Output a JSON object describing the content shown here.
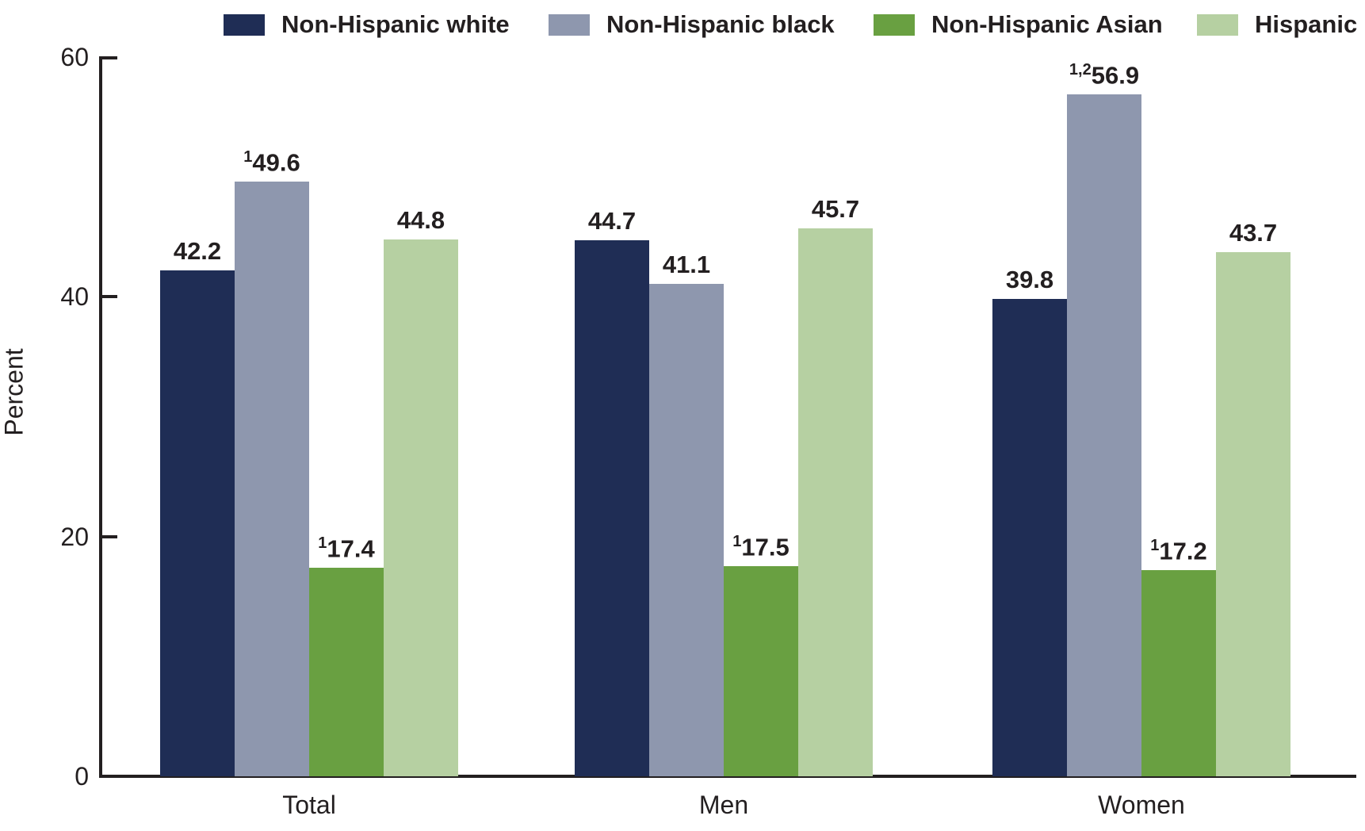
{
  "chart_data": {
    "type": "bar",
    "title": "",
    "ylabel": "Percent",
    "categories": [
      "Total",
      "Men",
      "Women"
    ],
    "series": [
      {
        "name": "Non-Hispanic white",
        "color": "#1f2d55",
        "values": [
          42.2,
          44.7,
          39.8
        ],
        "labels": [
          "42.2",
          "44.7",
          "39.8"
        ],
        "label_sups": [
          "",
          "",
          ""
        ]
      },
      {
        "name": "Non-Hispanic black",
        "color": "#8e97ae",
        "values": [
          49.6,
          41.1,
          56.9
        ],
        "labels": [
          "49.6",
          "41.1",
          "56.9"
        ],
        "label_sups": [
          "1",
          "",
          "1,2"
        ]
      },
      {
        "name": "Non-Hispanic Asian",
        "color": "#69a041",
        "values": [
          17.4,
          17.5,
          17.2
        ],
        "labels": [
          "17.4",
          "17.5",
          "17.2"
        ],
        "label_sups": [
          "1",
          "1",
          "1"
        ]
      },
      {
        "name": "Hispanic",
        "color": "#b6d0a2",
        "values": [
          44.8,
          45.7,
          43.7
        ],
        "labels": [
          "44.8",
          "45.7",
          "43.7"
        ],
        "label_sups": [
          "",
          "",
          ""
        ]
      }
    ],
    "ylim": [
      0,
      60
    ],
    "yticks": [
      0,
      20,
      40,
      60
    ],
    "ytick_labels": [
      "0",
      "20",
      "40",
      "60"
    ],
    "legend_position": "top",
    "grid": false,
    "axis_color": "#231f20",
    "text_color": "#231f20"
  }
}
